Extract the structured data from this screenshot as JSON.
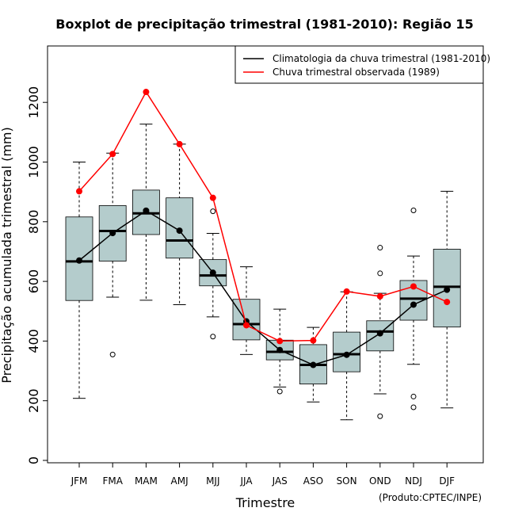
{
  "chart_data": {
    "type": "boxplot",
    "title": "Boxplot de precipitação trimestral (1981-2010): Região 15",
    "xlabel": "Trimestre",
    "ylabel": "Precipitação acumulada trimestral (mm)",
    "credit": "(Produto:CPTEC/INPE)",
    "ylim": [
      -20,
      1360
    ],
    "yticks": [
      0,
      200,
      400,
      600,
      800,
      1000,
      1200
    ],
    "categories": [
      "JFM",
      "FMA",
      "MAM",
      "AMJ",
      "MJJ",
      "JJA",
      "JAS",
      "ASO",
      "SON",
      "OND",
      "NDJ",
      "DJF"
    ],
    "boxes": [
      {
        "whisker_low": 208,
        "q1": 536,
        "median": 667,
        "q3": 816,
        "whisker_high": 1000,
        "outliers": []
      },
      {
        "whisker_low": 547,
        "q1": 668,
        "median": 769,
        "q3": 854,
        "whisker_high": 1030,
        "outliers": [
          355
        ]
      },
      {
        "whisker_low": 537,
        "q1": 757,
        "median": 828,
        "q3": 906,
        "whisker_high": 1127,
        "outliers": []
      },
      {
        "whisker_low": 522,
        "q1": 678,
        "median": 737,
        "q3": 880,
        "whisker_high": 1060,
        "outliers": []
      },
      {
        "whisker_low": 481,
        "q1": 585,
        "median": 620,
        "q3": 673,
        "whisker_high": 761,
        "outliers": [
          835,
          415
        ]
      },
      {
        "whisker_low": 355,
        "q1": 404,
        "median": 457,
        "q3": 540,
        "whisker_high": 649,
        "outliers": []
      },
      {
        "whisker_low": 246,
        "q1": 337,
        "median": 364,
        "q3": 403,
        "whisker_high": 507,
        "outliers": [
          231
        ]
      },
      {
        "whisker_low": 196,
        "q1": 256,
        "median": 320,
        "q3": 388,
        "whisker_high": 446,
        "outliers": []
      },
      {
        "whisker_low": 136,
        "q1": 297,
        "median": 356,
        "q3": 430,
        "whisker_high": 565,
        "outliers": []
      },
      {
        "whisker_low": 223,
        "q1": 367,
        "median": 432,
        "q3": 468,
        "whisker_high": 560,
        "outliers": [
          713,
          627,
          148
        ]
      },
      {
        "whisker_low": 322,
        "q1": 470,
        "median": 542,
        "q3": 603,
        "whisker_high": 685,
        "outliers": [
          838,
          214,
          178
        ]
      },
      {
        "whisker_low": 176,
        "q1": 447,
        "median": 582,
        "q3": 708,
        "whisker_high": 902,
        "outliers": []
      }
    ],
    "series": [
      {
        "name": "Climatologia da chuva trimestral (1981-2010)",
        "color": "#000000",
        "values": [
          670,
          762,
          837,
          770,
          629,
          466,
          370,
          320,
          354,
          426,
          522,
          572
        ]
      },
      {
        "name": "Chuva trimestral observada (1989)",
        "color": "#ff0000",
        "values": [
          902,
          1027,
          1235,
          1060,
          880,
          453,
          400,
          402,
          566,
          550,
          583,
          531
        ]
      }
    ],
    "box_fill": "#b4cccc",
    "legend_position": "top-right"
  }
}
